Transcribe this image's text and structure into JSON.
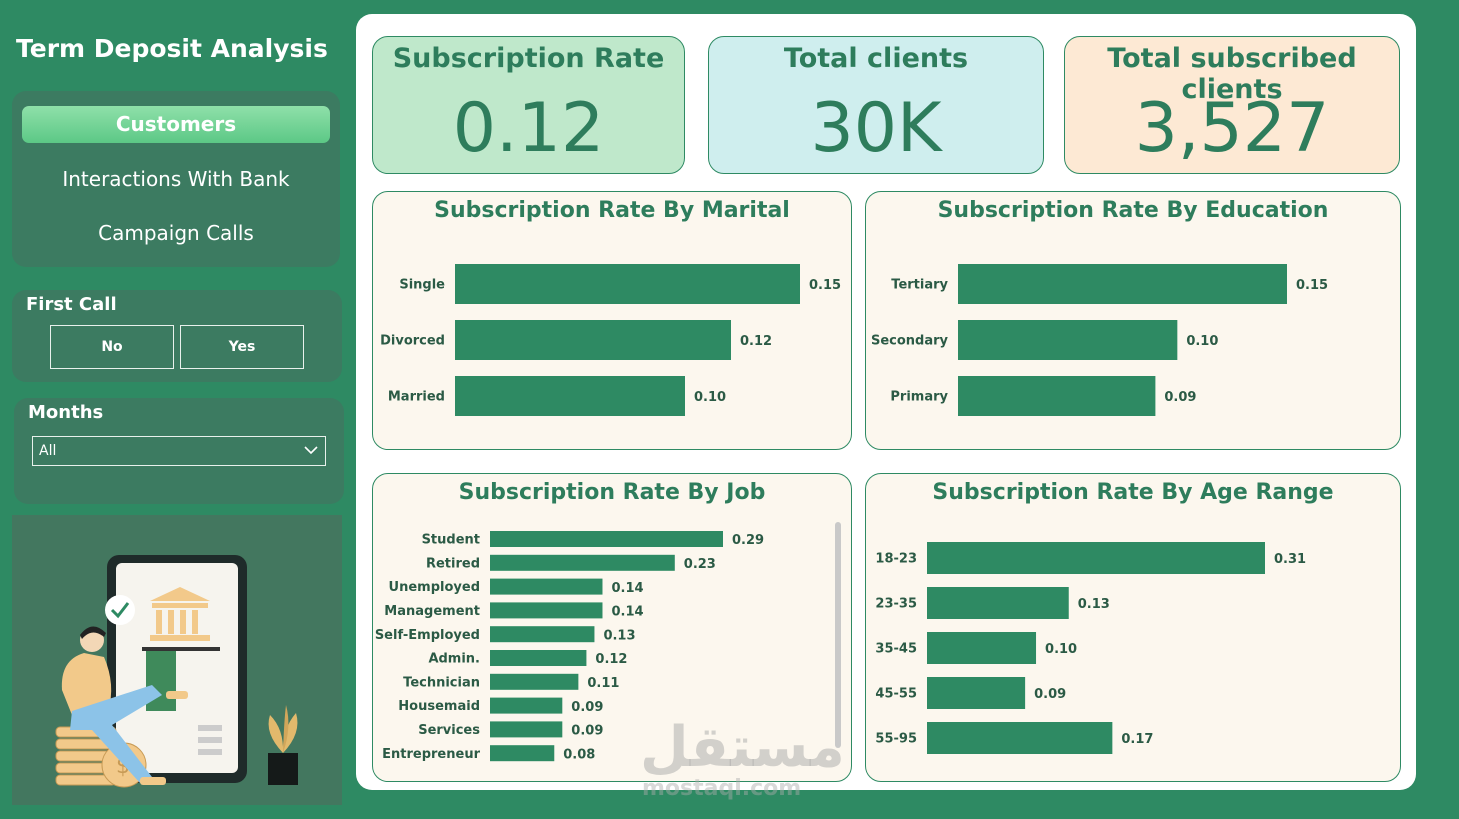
{
  "sidebar": {
    "title": "Term Deposit Analysis",
    "nav": [
      {
        "label": "Customers",
        "active": true
      },
      {
        "label": "Interactions With Bank",
        "active": false
      },
      {
        "label": "Campaign Calls",
        "active": false
      }
    ],
    "first_call": {
      "label": "First Call",
      "options": [
        "No",
        "Yes"
      ]
    },
    "months": {
      "label": "Months",
      "selected": "All"
    }
  },
  "kpis": [
    {
      "label": "Subscription Rate",
      "value": "0.12",
      "bg": "#bfe8cb"
    },
    {
      "label": "Total clients",
      "value": "30K",
      "bg": "#cfeeee"
    },
    {
      "label": "Total subscribed clients",
      "value": "3,527",
      "bg": "#fde9d4"
    }
  ],
  "colors": {
    "bar": "#2e8a63",
    "accent_text": "#2e7d5c",
    "card_bg": "#fcf7ee"
  },
  "watermark": {
    "text": "مستقل",
    "sub": "mostaql.com"
  },
  "chart_data": [
    {
      "id": "marital",
      "type": "bar",
      "orientation": "horizontal",
      "title": "Subscription Rate By Marital",
      "categories": [
        "Single",
        "Divorced",
        "Married"
      ],
      "values": [
        0.15,
        0.12,
        0.1
      ],
      "labels": [
        "0.15",
        "0.12",
        "0.10"
      ]
    },
    {
      "id": "education",
      "type": "bar",
      "orientation": "horizontal",
      "title": "Subscription Rate By Education",
      "categories": [
        "Tertiary",
        "Secondary",
        "Primary"
      ],
      "values": [
        0.15,
        0.1,
        0.09
      ],
      "labels": [
        "0.15",
        "0.10",
        "0.09"
      ]
    },
    {
      "id": "job",
      "type": "bar",
      "orientation": "horizontal",
      "title": "Subscription Rate By Job",
      "categories": [
        "Student",
        "Retired",
        "Unemployed",
        "Management",
        "Self-Employed",
        "Admin.",
        "Technician",
        "Housemaid",
        "Services",
        "Entrepreneur"
      ],
      "values": [
        0.29,
        0.23,
        0.14,
        0.14,
        0.13,
        0.12,
        0.11,
        0.09,
        0.09,
        0.08
      ],
      "labels": [
        "0.29",
        "0.23",
        "0.14",
        "0.14",
        "0.13",
        "0.12",
        "0.11",
        "0.09",
        "0.09",
        "0.08"
      ]
    },
    {
      "id": "age",
      "type": "bar",
      "orientation": "horizontal",
      "title": "Subscription Rate By Age Range",
      "categories": [
        "18-23",
        "23-35",
        "35-45",
        "45-55",
        "55-95"
      ],
      "values": [
        0.31,
        0.13,
        0.1,
        0.09,
        0.17
      ],
      "labels": [
        "0.31",
        "0.13",
        "0.10",
        "0.09",
        "0.17"
      ]
    }
  ]
}
